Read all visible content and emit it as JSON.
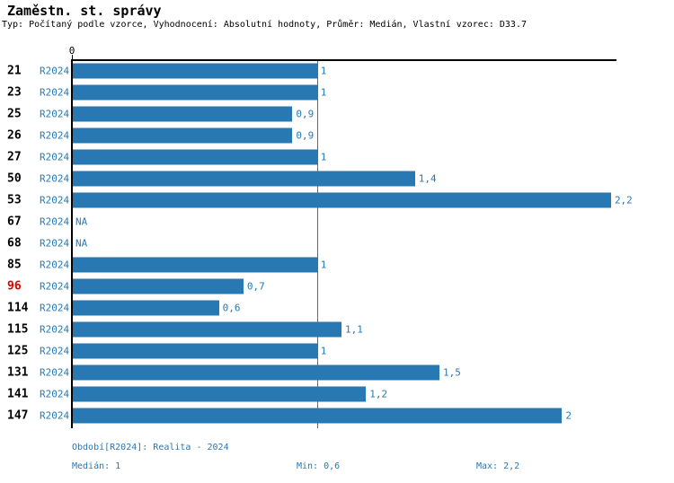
{
  "title": "Zaměstn. st. správy",
  "subtitle": "Typ: Počítaný podle vzorce, Vyhodnocení: Absolutní hodnoty, Průměr: Medián, Vlastní vzorec: D33.7",
  "axis": {
    "zero_label": "0"
  },
  "colors": {
    "bar_blue": "#2878b4",
    "text_blue": "#2878b4",
    "highlight_red": "#e00000",
    "axis_black": "#000000"
  },
  "chart_data": {
    "type": "bar",
    "orientation": "horizontal",
    "title": "Zaměstn. st. správy",
    "categories": [
      "21",
      "23",
      "25",
      "26",
      "27",
      "50",
      "53",
      "67",
      "68",
      "85",
      "96",
      "114",
      "115",
      "125",
      "131",
      "141",
      "147"
    ],
    "series": [
      {
        "name": "R2024",
        "values": [
          1,
          1,
          0.9,
          0.9,
          1,
          1.4,
          2.2,
          null,
          null,
          1,
          0.7,
          0.6,
          1.1,
          1,
          1.5,
          1.2,
          2
        ]
      }
    ],
    "value_labels": [
      "1",
      "1",
      "0,9",
      "0,9",
      "1",
      "1,4",
      "2,2",
      "NA",
      "NA",
      "1",
      "0,7",
      "0,6",
      "1,1",
      "1",
      "1,5",
      "1,2",
      "2"
    ],
    "period_label": "R2024",
    "highlighted_category": "96",
    "na_label": "NA",
    "xlim": [
      0,
      2.22
    ],
    "median_line_value": 1,
    "grid": false,
    "legend": "none"
  },
  "footer": {
    "period": "Období[R2024]: Realita - 2024",
    "median": "Medián: 1",
    "min": "Min: 0,6",
    "max": "Max: 2,2"
  }
}
